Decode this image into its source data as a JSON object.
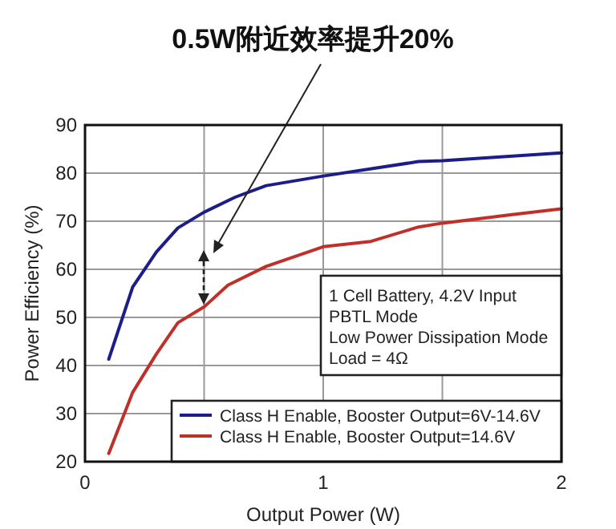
{
  "chart_data": {
    "type": "line",
    "title": "0.5W附近效率提升20%",
    "xlabel": "Output Power (W)",
    "ylabel": "Power Efficiency (%)",
    "xlim": [
      0,
      2
    ],
    "ylim": [
      20,
      90
    ],
    "xticks": [
      0,
      {
        "value": 0.5,
        "label": null
      },
      1,
      {
        "value": 1.5,
        "label": null
      },
      2
    ],
    "yticks": [
      20,
      30,
      40,
      50,
      60,
      70,
      80,
      90
    ],
    "grid": true,
    "legend": "bottom right",
    "line_style": "solid",
    "marker": "none",
    "annotations": [
      "1 Cell Battery, 4.2V Input",
      "PBTL Mode",
      "Low Power Dissipation Mode",
      "Load = 4Ω"
    ],
    "series": [
      {
        "name": "Class H Enable, Booster Output=6V-14.6V",
        "color": "#1c1c8a",
        "x": [
          0.1,
          0.2,
          0.3,
          0.39,
          0.5,
          0.63,
          0.76,
          1.0,
          1.4,
          1.5,
          2.0
        ],
        "values": [
          41.3,
          56.3,
          63.6,
          68.6,
          71.9,
          75,
          77.4,
          79.4,
          82.4,
          82.6,
          84.2
        ]
      },
      {
        "name": "Class H Enable, Booster Output=14.6V",
        "color": "#c0302a",
        "x": [
          0.1,
          0.2,
          0.3,
          0.39,
          0.5,
          0.6,
          0.76,
          1.0,
          1.2,
          1.4,
          1.5,
          1.8,
          2.0
        ],
        "values": [
          21.7,
          34.4,
          42.4,
          48.9,
          52.2,
          56.7,
          60.6,
          64.7,
          65.8,
          68.8,
          69.6,
          71.4,
          72.6
        ]
      }
    ]
  }
}
